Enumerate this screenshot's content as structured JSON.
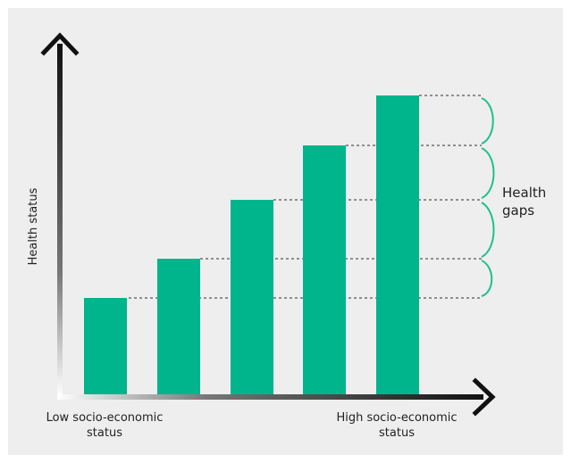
{
  "diagram": {
    "y_axis_label": "Health status",
    "x_axis_low_label": [
      "Low socio-economic",
      "status"
    ],
    "x_axis_high_label": [
      "High socio-economic",
      "status"
    ],
    "gap_label": [
      "Health",
      "gaps"
    ],
    "bar_count": 5,
    "relative_bar_heights": [
      1,
      1.43,
      2.1,
      2.72,
      3.27
    ],
    "colors": {
      "background": "#eeeeee",
      "bar": "#00b48c",
      "axis": "#111111",
      "dotted_line": "#555555",
      "brace": "#1fbf8f"
    }
  }
}
